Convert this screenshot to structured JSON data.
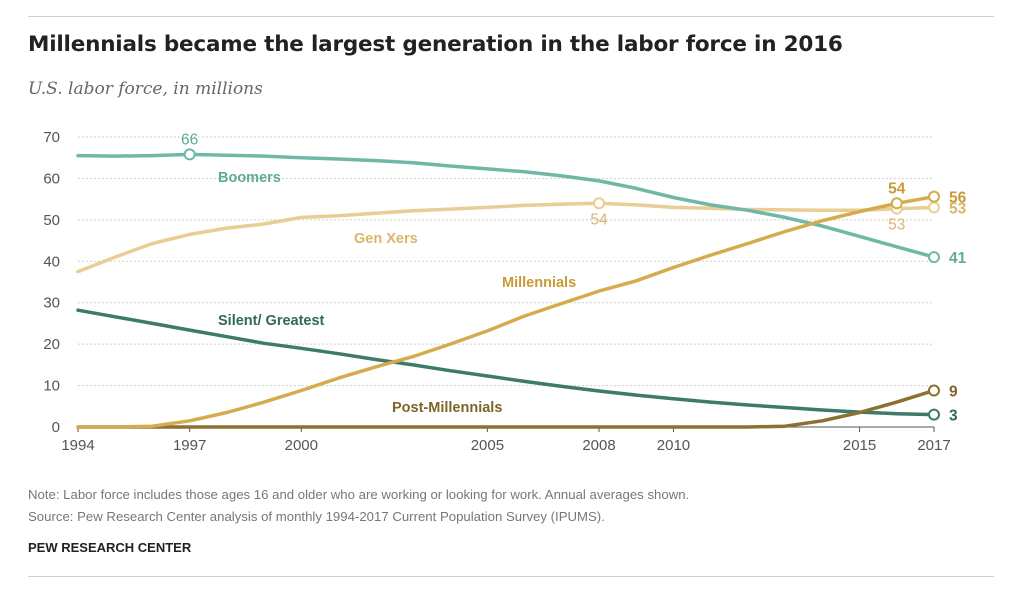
{
  "title": "Millennials became the largest generation in the labor force in 2016",
  "subtitle": "U.S. labor force, in millions",
  "note": "Note: Labor force includes those ages 16 and older who are working or looking for work. Annual averages shown.",
  "source": "Source: Pew Research Center analysis of monthly 1994-2017 Current Population Survey (IPUMS).",
  "brand": "PEW RESEARCH CENTER",
  "chart_data": {
    "type": "line",
    "title": "Millennials became the largest generation in the labor force in 2016",
    "subtitle": "U.S. labor force, in millions",
    "xlim": [
      1994,
      2017
    ],
    "ylim": [
      0,
      70
    ],
    "x_ticks": [
      1994,
      1997,
      2000,
      2005,
      2008,
      2010,
      2015,
      2017
    ],
    "y_ticks": [
      0,
      10,
      20,
      30,
      40,
      50,
      60,
      70
    ],
    "grid": "horizontal dotted",
    "legend": "inline labels",
    "series": [
      {
        "name": "Boomers",
        "color": "#6fb8a8",
        "x": [
          1994,
          1995,
          1996,
          1997,
          1998,
          1999,
          2000,
          2001,
          2002,
          2003,
          2004,
          2005,
          2006,
          2007,
          2008,
          2009,
          2010,
          2011,
          2012,
          2013,
          2014,
          2015,
          2016,
          2017
        ],
        "values": [
          65.5,
          65.4,
          65.5,
          65.8,
          65.6,
          65.4,
          65.0,
          64.7,
          64.3,
          63.8,
          63.0,
          62.3,
          61.6,
          60.6,
          59.4,
          57.6,
          55.4,
          53.6,
          52.3,
          50.6,
          48.5,
          46.0,
          43.5,
          41
        ],
        "annotations": [
          {
            "x": 1997,
            "label": "66",
            "marker": true,
            "pos": "above"
          },
          {
            "x": 2017,
            "label": "41",
            "marker": true,
            "pos": "right"
          }
        ]
      },
      {
        "name": "Gen Xers",
        "color": "#e9cd95",
        "x": [
          1994,
          1995,
          1996,
          1997,
          1998,
          1999,
          2000,
          2001,
          2002,
          2003,
          2004,
          2005,
          2006,
          2007,
          2008,
          2009,
          2010,
          2011,
          2012,
          2013,
          2014,
          2015,
          2016,
          2017
        ],
        "values": [
          37.5,
          41.0,
          44.3,
          46.5,
          48.0,
          49.0,
          50.6,
          51.0,
          51.6,
          52.2,
          52.6,
          53.0,
          53.5,
          53.8,
          54.0,
          53.6,
          53.0,
          52.8,
          52.5,
          52.4,
          52.3,
          52.3,
          52.7,
          53
        ],
        "annotations": [
          {
            "x": 2008,
            "label": "54",
            "marker": true,
            "pos": "below"
          },
          {
            "x": 2016,
            "label": "53",
            "marker": true,
            "pos": "below"
          },
          {
            "x": 2017,
            "label": "53",
            "marker": true,
            "pos": "right"
          }
        ]
      },
      {
        "name": "Millennials",
        "color": "#d6ab4e",
        "x": [
          1994,
          1995,
          1996,
          1997,
          1998,
          1999,
          2000,
          2001,
          2002,
          2003,
          2004,
          2005,
          2006,
          2007,
          2008,
          2009,
          2010,
          2011,
          2012,
          2013,
          2014,
          2015,
          2016,
          2017
        ],
        "values": [
          0,
          0,
          0.2,
          1.5,
          3.5,
          6.0,
          8.8,
          11.8,
          14.5,
          17.0,
          20.0,
          23.2,
          26.8,
          29.8,
          32.8,
          35.3,
          38.5,
          41.5,
          44.3,
          47.2,
          49.8,
          52.0,
          54,
          55.6
        ],
        "annotations": [
          {
            "x": 2016,
            "label": "54",
            "marker": true,
            "pos": "above"
          },
          {
            "x": 2017,
            "label": "56",
            "marker": true,
            "pos": "right"
          }
        ]
      },
      {
        "name": "Silent/ Greatest",
        "color": "#3d7a67",
        "x": [
          1994,
          1995,
          1996,
          1997,
          1998,
          1999,
          2000,
          2001,
          2002,
          2003,
          2004,
          2005,
          2006,
          2007,
          2008,
          2009,
          2010,
          2011,
          2012,
          2013,
          2014,
          2015,
          2016,
          2017
        ],
        "values": [
          28.2,
          26.6,
          25.0,
          23.4,
          21.8,
          20.2,
          19.0,
          17.7,
          16.3,
          15.0,
          13.6,
          12.3,
          11.0,
          9.8,
          8.7,
          7.7,
          6.8,
          6.0,
          5.3,
          4.7,
          4.1,
          3.6,
          3.2,
          3
        ],
        "annotations": [
          {
            "x": 2017,
            "label": "3",
            "marker": true,
            "pos": "right"
          }
        ]
      },
      {
        "name": "Post-Millennials",
        "color": "#8a7132",
        "x": [
          1994,
          1995,
          1996,
          1997,
          1998,
          1999,
          2000,
          2001,
          2002,
          2003,
          2004,
          2005,
          2006,
          2007,
          2008,
          2009,
          2010,
          2011,
          2012,
          2013,
          2014,
          2015,
          2016,
          2017
        ],
        "values": [
          0,
          0,
          0,
          0,
          0,
          0,
          0,
          0,
          0,
          0,
          0,
          0,
          0,
          0,
          0,
          0,
          0,
          0,
          0,
          0.2,
          1.5,
          3.5,
          6.0,
          8.8
        ],
        "annotations": [
          {
            "x": 2017,
            "label": "9",
            "marker": true,
            "pos": "right"
          }
        ]
      }
    ]
  }
}
